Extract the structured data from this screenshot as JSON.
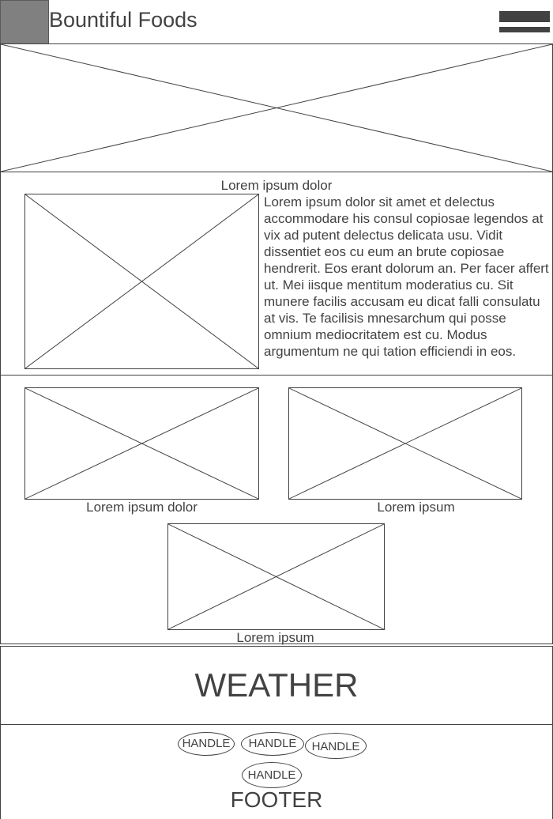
{
  "header": {
    "brand": "Bountiful Foods",
    "logo_icon": "logo-placeholder",
    "menu_icon": "hamburger-icon"
  },
  "intro": {
    "title": "Lorem ipsum dolor",
    "body": "Lorem ipsum dolor sit amet et delectus accommodare his consul copiosae legendos at vix ad putent delectus delicata usu. Vidit dissentiet eos cu eum an brute copiosae hendrerit. Eos erant dolorum an. Per facer affert ut. Mei iisque mentitum moderatius cu. Sit munere facilis accusam eu dicat falli consulatu at vis. Te facilisis mnesarchum qui posse omnium mediocritatem est cu. Modus argumentum ne qui tation efficiendi in eos."
  },
  "gallery": {
    "items": [
      {
        "caption": "Lorem ipsum dolor"
      },
      {
        "caption": "Lorem ipsum"
      },
      {
        "caption": "Lorem ipsum"
      }
    ]
  },
  "weather": {
    "label": "WEATHER"
  },
  "footer": {
    "handles": [
      "HANDLE",
      "HANDLE",
      "HANDLE",
      "HANDLE"
    ],
    "label": "FOOTER"
  },
  "colors": {
    "stroke": "#424242",
    "logo_fill": "#808080",
    "background": "#ffffff"
  }
}
